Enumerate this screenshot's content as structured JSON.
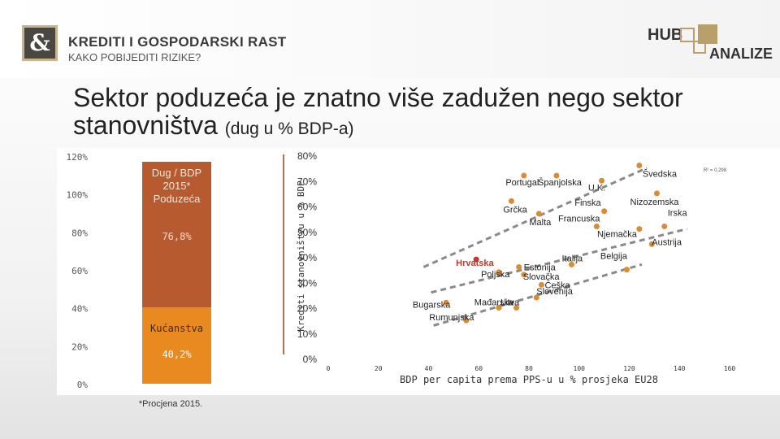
{
  "header": {
    "logo_symbol": "&",
    "brand_title": "KREDITI I GOSPODARSKI RAST",
    "brand_subtitle": "KAKO POBIJEDITI RIZIKE?",
    "hub_logo_text_1": "HUB",
    "hub_logo_text_2": "ANALIZE"
  },
  "slide": {
    "title": "Sektor poduzeća je znatno više zadužen nego sektor stanovništva",
    "title_suffix": "(dug u % BDP-a)"
  },
  "chart_data": [
    {
      "type": "bar",
      "stacked": true,
      "categories": [
        ""
      ],
      "series": [
        {
          "name": "Kućanstva",
          "values": [
            40.2
          ],
          "label": "40,2%",
          "color": "#e88a1f"
        },
        {
          "name": "Dug / BDP 2015* Poduzeća",
          "values": [
            76.8
          ],
          "label": "76,8%",
          "color": "#b85a2f"
        }
      ],
      "segment_titles": [
        "Kućanstva",
        "Dug / BDP 2015* Poduzeća"
      ],
      "yticks": [
        "0%",
        "20%",
        "40%",
        "60%",
        "80%",
        "100%",
        "120%"
      ],
      "ylim": [
        0,
        120
      ],
      "footnote": "*Procjena 2015."
    },
    {
      "type": "scatter",
      "ylabel": "Krediti stanovništvu u % BDP",
      "xlabel": "BDP per capita prema PPS-u u % prosjeka EU28",
      "xlim": [
        0,
        160
      ],
      "ylim": [
        0,
        80
      ],
      "xticks": [
        "0",
        "20",
        "40",
        "60",
        "80",
        "100",
        "120",
        "140",
        "160"
      ],
      "yticks": [
        "0%",
        "10%",
        "20%",
        "30%",
        "40%",
        "50%",
        "60%",
        "70%",
        "80%"
      ],
      "r2_label": "R² = 0,298",
      "point_color": "#d98c33",
      "point_color_highlight": "#c0382b",
      "trendline_color": "#8a8a8a",
      "points": [
        {
          "name": "Švedska",
          "x": 124,
          "y": 76
        },
        {
          "name": "Portugal",
          "x": 78,
          "y": 72
        },
        {
          "name": "Španjolska",
          "x": 91,
          "y": 72
        },
        {
          "name": "U.K.",
          "x": 109,
          "y": 70
        },
        {
          "name": "Nizozemska",
          "x": 131,
          "y": 65
        },
        {
          "name": "Grčka",
          "x": 73,
          "y": 62
        },
        {
          "name": "Finska",
          "x": 110,
          "y": 58
        },
        {
          "name": "Malta",
          "x": 84,
          "y": 57
        },
        {
          "name": "Francuska",
          "x": 107,
          "y": 52
        },
        {
          "name": "Irska",
          "x": 134,
          "y": 52
        },
        {
          "name": "Njemačka",
          "x": 124,
          "y": 51
        },
        {
          "name": "Austrija",
          "x": 129,
          "y": 45
        },
        {
          "name": "Hrvatska",
          "x": 59,
          "y": 39,
          "highlight": true
        },
        {
          "name": "Belgija",
          "x": 119,
          "y": 35
        },
        {
          "name": "Estonija",
          "x": 76,
          "y": 36
        },
        {
          "name": "Italija",
          "x": 97,
          "y": 37
        },
        {
          "name": "Poljska",
          "x": 68,
          "y": 34
        },
        {
          "name": "Slovačka",
          "x": 78,
          "y": 33
        },
        {
          "name": "Češka",
          "x": 85,
          "y": 29
        },
        {
          "name": "Slovenija",
          "x": 83,
          "y": 24
        },
        {
          "name": "Mađarska",
          "x": 68,
          "y": 20
        },
        {
          "name": "Litva",
          "x": 75,
          "y": 20
        },
        {
          "name": "Bugarska",
          "x": 47,
          "y": 22
        },
        {
          "name": "Rumunjska",
          "x": 55,
          "y": 15
        }
      ],
      "trendlines": [
        {
          "from": [
            38,
            36
          ],
          "to": [
            127,
            75
          ]
        },
        {
          "from": [
            41,
            26
          ],
          "to": [
            143,
            51
          ]
        },
        {
          "from": [
            42,
            13
          ],
          "to": [
            125,
            37
          ]
        }
      ]
    }
  ]
}
